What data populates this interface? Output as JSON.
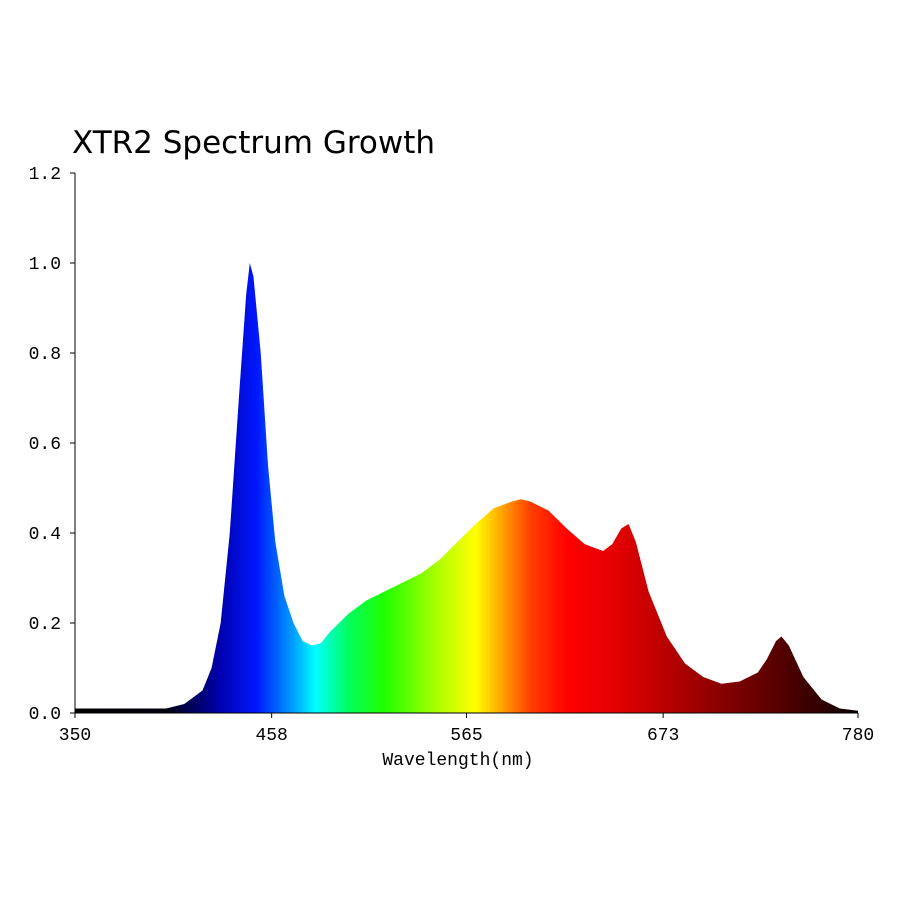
{
  "chart_data": {
    "type": "area",
    "title": "XTR2 Spectrum Growth",
    "x_label": "Wavelength(nm)",
    "x": [
      350,
      400,
      410,
      420,
      425,
      430,
      435,
      440,
      444,
      446,
      448,
      452,
      456,
      460,
      465,
      470,
      475,
      480,
      485,
      490,
      500,
      510,
      520,
      530,
      540,
      550,
      560,
      570,
      580,
      590,
      595,
      600,
      610,
      620,
      630,
      640,
      645,
      650,
      654,
      658,
      665,
      675,
      685,
      695,
      705,
      715,
      725,
      730,
      735,
      738,
      742,
      750,
      760,
      770,
      780
    ],
    "values": [
      0.01,
      0.01,
      0.02,
      0.05,
      0.1,
      0.2,
      0.4,
      0.7,
      0.93,
      1.0,
      0.97,
      0.8,
      0.55,
      0.38,
      0.26,
      0.2,
      0.16,
      0.15,
      0.155,
      0.18,
      0.22,
      0.25,
      0.27,
      0.29,
      0.31,
      0.34,
      0.38,
      0.42,
      0.455,
      0.47,
      0.475,
      0.47,
      0.45,
      0.41,
      0.375,
      0.36,
      0.375,
      0.41,
      0.42,
      0.38,
      0.27,
      0.17,
      0.11,
      0.08,
      0.065,
      0.07,
      0.09,
      0.12,
      0.16,
      0.17,
      0.15,
      0.08,
      0.03,
      0.01,
      0.005
    ],
    "color_stops": [
      {
        "x": 350,
        "color": "#000000"
      },
      {
        "x": 400,
        "color": "#000010"
      },
      {
        "x": 430,
        "color": "#0000b0"
      },
      {
        "x": 450,
        "color": "#0018ff"
      },
      {
        "x": 470,
        "color": "#00a0ff"
      },
      {
        "x": 482,
        "color": "#00ffff"
      },
      {
        "x": 500,
        "color": "#00ff60"
      },
      {
        "x": 520,
        "color": "#20ff00"
      },
      {
        "x": 555,
        "color": "#c8ff00"
      },
      {
        "x": 570,
        "color": "#ffff00"
      },
      {
        "x": 585,
        "color": "#ffa000"
      },
      {
        "x": 600,
        "color": "#ff4000"
      },
      {
        "x": 620,
        "color": "#ff0000"
      },
      {
        "x": 650,
        "color": "#e00000"
      },
      {
        "x": 690,
        "color": "#a00000"
      },
      {
        "x": 720,
        "color": "#700000"
      },
      {
        "x": 760,
        "color": "#300000"
      },
      {
        "x": 780,
        "color": "#000000"
      }
    ],
    "xlim": [
      350,
      780
    ],
    "xticks": [
      350,
      458,
      565,
      673,
      780
    ],
    "ylim": [
      0,
      1.2
    ],
    "yticks": [
      {
        "value": 0,
        "label": "0.0"
      },
      {
        "value": 0.2,
        "label": "0.2"
      },
      {
        "value": 0.4,
        "label": "0.4"
      },
      {
        "value": 0.6,
        "label": "0.6"
      },
      {
        "value": 0.8,
        "label": "0.8"
      },
      {
        "value": 1.0,
        "label": "1.0"
      },
      {
        "value": 1.2,
        "label": "1.2"
      }
    ]
  }
}
